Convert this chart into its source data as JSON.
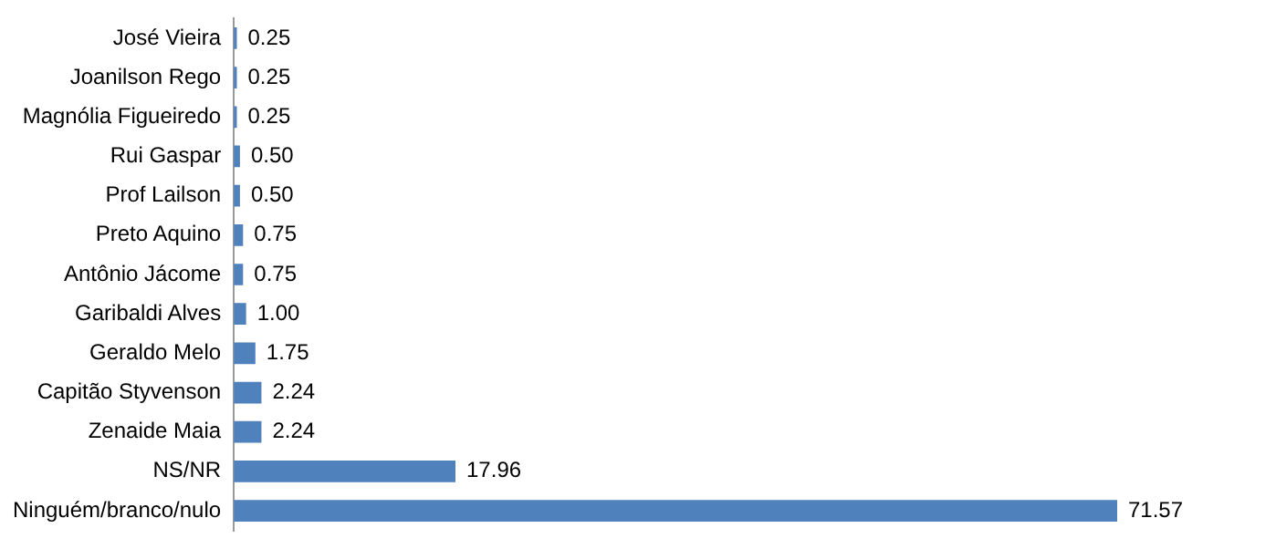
{
  "chart_data": {
    "type": "bar",
    "orientation": "horizontal",
    "categories": [
      "José Vieira",
      "Joanilson Rego",
      "Magnólia Figueiredo",
      "Rui Gaspar",
      "Prof Lailson",
      "Preto Aquino",
      "Antônio Jácome",
      "Garibaldi Alves",
      "Geraldo Melo",
      "Capitão Styvenson",
      "Zenaide Maia",
      "NS/NR",
      "Ninguém/branco/nulo"
    ],
    "values": [
      0.25,
      0.25,
      0.25,
      0.5,
      0.5,
      0.75,
      0.75,
      1.0,
      1.75,
      2.24,
      2.24,
      17.96,
      71.57
    ],
    "value_labels": [
      "0.25",
      "0.25",
      "0.25",
      "0.50",
      "0.50",
      "0.75",
      "0.75",
      "1.00",
      "1.75",
      "2.24",
      "2.24",
      "17.96",
      "71.57"
    ],
    "color": "#4f81bd",
    "grid": false,
    "legend": false,
    "tick_labels": "y"
  }
}
